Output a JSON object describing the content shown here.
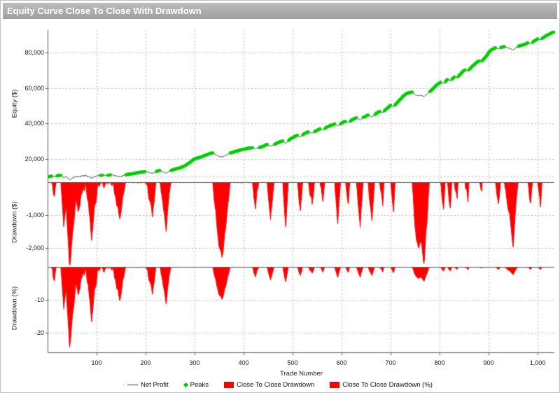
{
  "window": {
    "title": "Equity Curve Close To Close With Drawdown"
  },
  "colors": {
    "title_bar": "#ababab",
    "equity_line": "#333333",
    "peaks": "#00cf00",
    "drawdown_fill": "#ff0000",
    "grid": "#b5b5b5",
    "axis": "#58585a",
    "tick_text": "#222222"
  },
  "legend": {
    "items": [
      {
        "label": "Net Profit",
        "swatch": "line"
      },
      {
        "label": "Peaks",
        "swatch": "diamond"
      },
      {
        "label": "Close To Close Drawdown",
        "swatch": "rect"
      },
      {
        "label": "Close To Close Drawdown (%)",
        "swatch": "rect"
      }
    ]
  },
  "chart_data": {
    "type": "line",
    "title": "Equity Curve Close To Close With Drawdown",
    "x_range": [
      1,
      1033
    ],
    "start_equity": 10000,
    "grid": true,
    "panels": [
      {
        "id": "equity",
        "axis_title": "Equity ($)",
        "tick_labels": [
          "80,000",
          "60,000",
          "40,000",
          "20,000"
        ],
        "tick_values": [
          80000,
          60000,
          40000,
          20000
        ],
        "reference_line": 10000,
        "series_names": [
          "Net Profit",
          "Peaks"
        ]
      },
      {
        "id": "dd_dollars",
        "axis_title": "Drawdown ($)",
        "tick_labels": [
          "-1,000",
          "-2,000"
        ],
        "tick_values": [
          -1000,
          -2000
        ],
        "series_names": [
          "Close To Close Drawdown"
        ]
      },
      {
        "id": "dd_percent",
        "axis_title": "Drawdown (%)",
        "tick_labels": [
          "-10",
          "-20"
        ],
        "tick_values": [
          -10,
          -20
        ],
        "series_names": [
          "Close To Close Drawdown (%)"
        ]
      }
    ],
    "x_axis": {
      "title": "Trade Number",
      "tick_labels": [
        "100",
        "200",
        "300",
        "400",
        "500",
        "600",
        "700",
        "800",
        "900",
        "1,000"
      ],
      "tick_values": [
        100,
        200,
        300,
        400,
        500,
        600,
        700,
        800,
        900,
        1000
      ]
    },
    "noise": {
      "amplitude": 360,
      "seed": 88
    },
    "equity_anchors": [
      [
        1,
        9900
      ],
      [
        8,
        10150
      ],
      [
        14,
        9800
      ],
      [
        20,
        10450
      ],
      [
        27,
        10600
      ],
      [
        33,
        9400
      ],
      [
        38,
        9950
      ],
      [
        45,
        8150
      ],
      [
        52,
        9300
      ],
      [
        58,
        10150
      ],
      [
        63,
        9800
      ],
      [
        70,
        10350
      ],
      [
        77,
        10600
      ],
      [
        83,
        10100
      ],
      [
        90,
        8900
      ],
      [
        96,
        9900
      ],
      [
        102,
        10500
      ],
      [
        110,
        10700
      ],
      [
        118,
        10750
      ],
      [
        126,
        10820
      ],
      [
        134,
        10880
      ],
      [
        140,
        10400
      ],
      [
        148,
        9750
      ],
      [
        155,
        10650
      ],
      [
        162,
        11050
      ],
      [
        170,
        11450
      ],
      [
        178,
        11850
      ],
      [
        186,
        12250
      ],
      [
        194,
        12550
      ],
      [
        202,
        12750
      ],
      [
        208,
        12150
      ],
      [
        214,
        11750
      ],
      [
        221,
        12700
      ],
      [
        228,
        13350
      ],
      [
        235,
        12700
      ],
      [
        242,
        11900
      ],
      [
        250,
        13100
      ],
      [
        258,
        13950
      ],
      [
        266,
        14550
      ],
      [
        274,
        15250
      ],
      [
        282,
        16350
      ],
      [
        290,
        18000
      ],
      [
        298,
        19600
      ],
      [
        306,
        20450
      ],
      [
        314,
        21150
      ],
      [
        322,
        21950
      ],
      [
        330,
        22950
      ],
      [
        337,
        23350
      ],
      [
        344,
        22200
      ],
      [
        350,
        21400
      ],
      [
        356,
        21000
      ],
      [
        363,
        21800
      ],
      [
        370,
        22950
      ],
      [
        378,
        23750
      ],
      [
        386,
        24350
      ],
      [
        394,
        25050
      ],
      [
        402,
        25450
      ],
      [
        410,
        25950
      ],
      [
        418,
        26250
      ],
      [
        424,
        25550
      ],
      [
        432,
        26450
      ],
      [
        440,
        27050
      ],
      [
        448,
        28150
      ],
      [
        455,
        27050
      ],
      [
        464,
        28350
      ],
      [
        472,
        29250
      ],
      [
        480,
        30150
      ],
      [
        486,
        28750
      ],
      [
        494,
        30950
      ],
      [
        502,
        32250
      ],
      [
        510,
        33350
      ],
      [
        516,
        32450
      ],
      [
        524,
        34150
      ],
      [
        532,
        35250
      ],
      [
        540,
        34450
      ],
      [
        548,
        35850
      ],
      [
        556,
        36950
      ],
      [
        562,
        36350
      ],
      [
        570,
        37850
      ],
      [
        578,
        38950
      ],
      [
        586,
        39650
      ],
      [
        592,
        38550
      ],
      [
        600,
        40250
      ],
      [
        608,
        41250
      ],
      [
        614,
        40550
      ],
      [
        622,
        42150
      ],
      [
        630,
        43250
      ],
      [
        638,
        41950
      ],
      [
        646,
        43650
      ],
      [
        654,
        44750
      ],
      [
        662,
        43550
      ],
      [
        670,
        45550
      ],
      [
        678,
        46850
      ],
      [
        684,
        46150
      ],
      [
        692,
        48350
      ],
      [
        700,
        50250
      ],
      [
        706,
        49450
      ],
      [
        714,
        51850
      ],
      [
        720,
        53650
      ],
      [
        726,
        55450
      ],
      [
        732,
        56750
      ],
      [
        738,
        57350
      ],
      [
        744,
        57650
      ],
      [
        750,
        56250
      ],
      [
        756,
        55650
      ],
      [
        762,
        55950
      ],
      [
        768,
        55200
      ],
      [
        774,
        56450
      ],
      [
        780,
        57950
      ],
      [
        788,
        60150
      ],
      [
        796,
        62150
      ],
      [
        802,
        63350
      ],
      [
        808,
        62450
      ],
      [
        816,
        64850
      ],
      [
        822,
        64150
      ],
      [
        830,
        66350
      ],
      [
        836,
        65850
      ],
      [
        844,
        68350
      ],
      [
        852,
        70350
      ],
      [
        858,
        69750
      ],
      [
        866,
        72150
      ],
      [
        874,
        74050
      ],
      [
        880,
        75350
      ],
      [
        886,
        74950
      ],
      [
        894,
        77650
      ],
      [
        902,
        80650
      ],
      [
        908,
        82050
      ],
      [
        914,
        82650
      ],
      [
        920,
        82050
      ],
      [
        926,
        83050
      ],
      [
        932,
        83450
      ],
      [
        938,
        82950
      ],
      [
        944,
        82250
      ],
      [
        950,
        81550
      ],
      [
        956,
        82750
      ],
      [
        962,
        83650
      ],
      [
        968,
        84150
      ],
      [
        974,
        84750
      ],
      [
        980,
        85650
      ],
      [
        986,
        84950
      ],
      [
        992,
        86450
      ],
      [
        1000,
        87750
      ],
      [
        1006,
        87250
      ],
      [
        1012,
        88650
      ],
      [
        1018,
        89650
      ],
      [
        1024,
        90450
      ],
      [
        1030,
        91450
      ],
      [
        1033,
        91700
      ]
    ]
  }
}
